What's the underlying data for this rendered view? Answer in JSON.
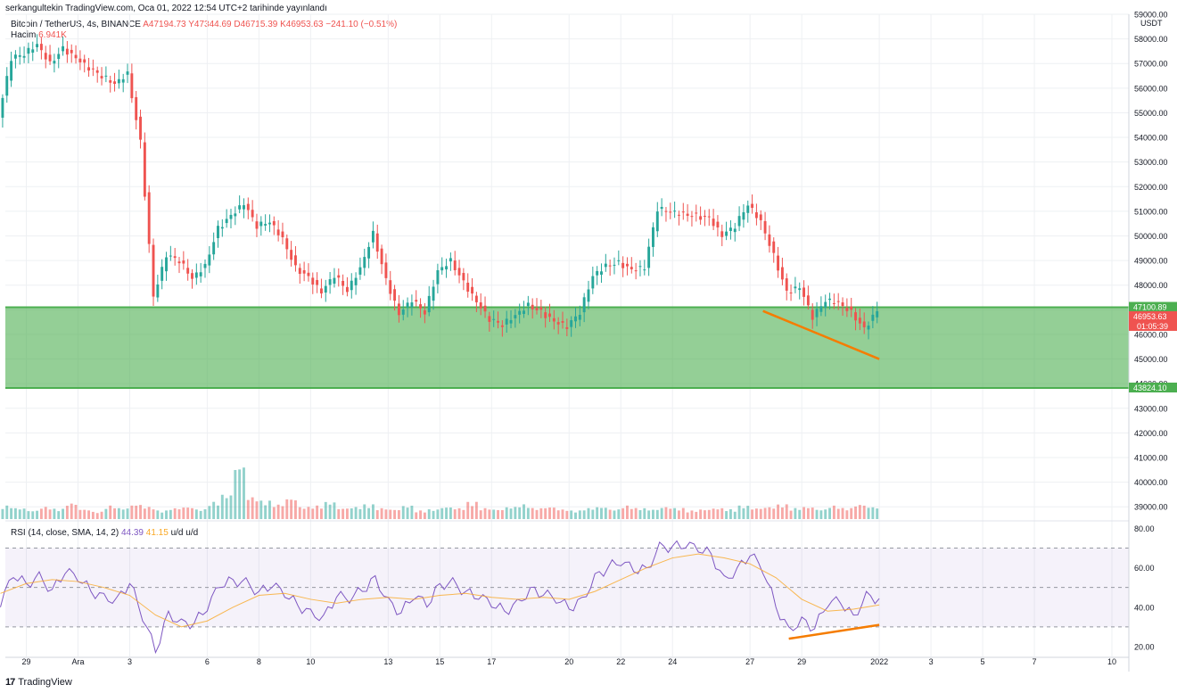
{
  "header": {
    "published": "serkangultekin TradingView.com, Oca 01, 2022 12:54 UTC+2 tarihinde yayınlandı",
    "symbol": "Bitcoin / TetherUS, 4s, BINANCE",
    "open": "A47194.73",
    "high": "Y47344.69",
    "low": "D46715.39",
    "close": "K46953.63",
    "change": "−241.10 (−0.51%)",
    "volume_label": "Hacim",
    "volume_value": "6.941K"
  },
  "rsi_legend": {
    "label": "RSI (14, close, SMA, 14, 2)",
    "rsi_value": "44.39",
    "sma_value": "41.15",
    "extra": "u/d u/d"
  },
  "footer": {
    "logo": "17",
    "brand": "TradingView"
  },
  "colors": {
    "up": "#26a69a",
    "down": "#ef5350",
    "zone": "#4caf50",
    "trend": "#f57c00",
    "rsi": "#7e57c2",
    "sma": "#f9a825"
  },
  "chart_data": [
    {
      "type": "candlestick",
      "title": "",
      "xlabel": "",
      "ylabel": "",
      "currency": "USDT",
      "ylim": [
        38500,
        59000
      ],
      "y_ticks": [
        39000,
        40000,
        41000,
        42000,
        43000,
        44000,
        45000,
        46000,
        47000,
        48000,
        49000,
        50000,
        51000,
        52000,
        53000,
        54000,
        55000,
        56000,
        57000,
        58000,
        59000
      ],
      "y_tick_labels": [
        "39000.00",
        "40000.00",
        "41000.00",
        "42000.00",
        "43000.00",
        "44000.00",
        "45000.00",
        "46000.00",
        "47000.00",
        "48000.00",
        "49000.00",
        "50000.00",
        "51000.00",
        "52000.00",
        "53000.00",
        "54000.00",
        "55000.00",
        "56000.00",
        "57000.00",
        "58000.00",
        "59000.00"
      ],
      "x_tick_labels": [
        "29",
        "Ara",
        "3",
        "6",
        "8",
        "10",
        "13",
        "15",
        "17",
        "20",
        "22",
        "24",
        "27",
        "29",
        "2022",
        "3",
        "5",
        "7",
        "10"
      ],
      "x_tick_dates": [
        "2021-11-29",
        "2021-12-01",
        "2021-12-03",
        "2021-12-06",
        "2021-12-08",
        "2021-12-10",
        "2021-12-13",
        "2021-12-15",
        "2021-12-17",
        "2021-12-20",
        "2021-12-22",
        "2021-12-24",
        "2021-12-27",
        "2021-12-29",
        "2022-01-01",
        "2022-01-03",
        "2022-01-05",
        "2022-01-07",
        "2022-01-10"
      ],
      "close_series": [
        [
          "2021-11-28",
          54800
        ],
        [
          "2021-11-28T12:00",
          57200
        ],
        [
          "2021-11-29",
          57400
        ],
        [
          "2021-11-29T12:00",
          57800
        ],
        [
          "2021-11-30",
          57000
        ],
        [
          "2021-11-30T12:00",
          57600
        ],
        [
          "2021-12-01",
          57200
        ],
        [
          "2021-12-01T12:00",
          56800
        ],
        [
          "2021-12-02",
          56500
        ],
        [
          "2021-12-02T12:00",
          56200
        ],
        [
          "2021-12-03",
          56600
        ],
        [
          "2021-12-03T12:00",
          53800
        ],
        [
          "2021-12-04",
          47500
        ],
        [
          "2021-12-04T12:00",
          49200
        ],
        [
          "2021-12-05",
          49000
        ],
        [
          "2021-12-05T12:00",
          48300
        ],
        [
          "2021-12-06",
          48800
        ],
        [
          "2021-12-06T12:00",
          50300
        ],
        [
          "2021-12-07",
          50800
        ],
        [
          "2021-12-07T12:00",
          51300
        ],
        [
          "2021-12-08",
          50400
        ],
        [
          "2021-12-08T12:00",
          50600
        ],
        [
          "2021-12-09",
          49900
        ],
        [
          "2021-12-09T12:00",
          48700
        ],
        [
          "2021-12-10",
          48300
        ],
        [
          "2021-12-10T12:00",
          47700
        ],
        [
          "2021-12-11",
          48400
        ],
        [
          "2021-12-11T12:00",
          47800
        ],
        [
          "2021-12-12",
          48700
        ],
        [
          "2021-12-12T12:00",
          50100
        ],
        [
          "2021-12-13",
          48200
        ],
        [
          "2021-12-13T12:00",
          46800
        ],
        [
          "2021-12-14",
          47400
        ],
        [
          "2021-12-14T12:00",
          46900
        ],
        [
          "2021-12-15",
          48600
        ],
        [
          "2021-12-15T12:00",
          49000
        ],
        [
          "2021-12-16",
          48100
        ],
        [
          "2021-12-16T12:00",
          47300
        ],
        [
          "2021-12-17",
          46600
        ],
        [
          "2021-12-17T12:00",
          46400
        ],
        [
          "2021-12-18",
          46800
        ],
        [
          "2021-12-18T12:00",
          47200
        ],
        [
          "2021-12-19",
          46900
        ],
        [
          "2021-12-19T12:00",
          46500
        ],
        [
          "2021-12-20",
          46300
        ],
        [
          "2021-12-20T12:00",
          46900
        ],
        [
          "2021-12-21",
          48400
        ],
        [
          "2021-12-21T12:00",
          48800
        ],
        [
          "2021-12-22",
          48900
        ],
        [
          "2021-12-22T12:00",
          48600
        ],
        [
          "2021-12-23",
          48700
        ],
        [
          "2021-12-23T12:00",
          51100
        ],
        [
          "2021-12-24",
          51000
        ],
        [
          "2021-12-24T12:00",
          50900
        ],
        [
          "2021-12-25",
          50800
        ],
        [
          "2021-12-25T12:00",
          50700
        ],
        [
          "2021-12-26",
          50000
        ],
        [
          "2021-12-26T12:00",
          50400
        ],
        [
          "2021-12-27",
          51300
        ],
        [
          "2021-12-27T12:00",
          50600
        ],
        [
          "2021-12-28",
          49200
        ],
        [
          "2021-12-28T12:00",
          47700
        ],
        [
          "2021-12-29",
          47900
        ],
        [
          "2021-12-29T12:00",
          46700
        ],
        [
          "2021-12-30",
          47400
        ],
        [
          "2021-12-30T12:00",
          47300
        ],
        [
          "2021-12-31",
          46900
        ],
        [
          "2021-12-31T12:00",
          46200
        ],
        [
          "2022-01-01",
          46950
        ]
      ],
      "reference_lines": [
        {
          "value": 47100.89,
          "label": "47100.89"
        },
        {
          "value": 43824.1,
          "label": "43824.10"
        }
      ],
      "current_price": {
        "value": 46953.63,
        "label": "46953.63",
        "countdown": "01:05:39"
      },
      "support_zone": [
        43824.1,
        47100.89
      ],
      "trendline": {
        "from": [
          "2021-12-27T12:00",
          46950
        ],
        "to": [
          "2022-01-01",
          45000
        ]
      }
    },
    {
      "type": "bar",
      "title": "",
      "series_name": "Hacim",
      "volume_pattern": [
        0.55,
        0.45,
        0.35,
        0.5,
        0.42,
        0.65,
        0.4,
        0.3,
        0.55,
        0.45,
        0.6,
        0.5,
        0.35,
        0.45,
        0.5,
        0.4,
        0.7,
        1.0,
        2.2,
        0.9,
        0.75,
        0.6,
        0.85,
        0.5,
        0.55,
        0.7,
        0.45,
        0.5,
        0.6,
        0.45,
        0.4,
        0.55,
        0.35,
        0.4,
        0.5,
        0.45,
        0.7,
        0.45,
        0.4,
        0.5,
        0.6,
        0.45,
        0.5,
        0.4,
        0.35,
        0.45,
        0.5,
        0.4,
        0.55,
        0.45,
        0.4,
        0.5,
        0.45,
        0.35,
        0.4,
        0.45,
        0.4,
        0.55,
        0.45,
        0.5,
        0.6,
        0.45,
        0.5,
        0.4,
        0.55,
        0.45,
        0.6,
        0.5,
        0.35
      ]
    },
    {
      "type": "line",
      "title": "",
      "ylim": [
        15,
        82
      ],
      "y_ticks": [
        20,
        40,
        60,
        80
      ],
      "y_tick_labels": [
        "20.00",
        "40.00",
        "60.00",
        "80.00"
      ],
      "levels": [
        70,
        50,
        30
      ],
      "rsi_series": [
        [
          "2021-11-28",
          40
        ],
        [
          "2021-11-28T12:00",
          55
        ],
        [
          "2021-11-29",
          52
        ],
        [
          "2021-11-29T12:00",
          58
        ],
        [
          "2021-11-30",
          49
        ],
        [
          "2021-11-30T12:00",
          57
        ],
        [
          "2021-12-01",
          53
        ],
        [
          "2021-12-01T12:00",
          48
        ],
        [
          "2021-12-02",
          47
        ],
        [
          "2021-12-02T12:00",
          45
        ],
        [
          "2021-12-03",
          52
        ],
        [
          "2021-12-03T12:00",
          33
        ],
        [
          "2021-12-04",
          17
        ],
        [
          "2021-12-04T12:00",
          38
        ],
        [
          "2021-12-05",
          34
        ],
        [
          "2021-12-05T12:00",
          32
        ],
        [
          "2021-12-06",
          38
        ],
        [
          "2021-12-06T12:00",
          50
        ],
        [
          "2021-12-07",
          54
        ],
        [
          "2021-12-07T12:00",
          55
        ],
        [
          "2021-12-08",
          48
        ],
        [
          "2021-12-08T12:00",
          50
        ],
        [
          "2021-12-09",
          45
        ],
        [
          "2021-12-09T12:00",
          41
        ],
        [
          "2021-12-10",
          39
        ],
        [
          "2021-12-10T12:00",
          36
        ],
        [
          "2021-12-11",
          45
        ],
        [
          "2021-12-11T12:00",
          42
        ],
        [
          "2021-12-12",
          48
        ],
        [
          "2021-12-12T12:00",
          56
        ],
        [
          "2021-12-13",
          45
        ],
        [
          "2021-12-13T12:00",
          37
        ],
        [
          "2021-12-14",
          44
        ],
        [
          "2021-12-14T12:00",
          40
        ],
        [
          "2021-12-15",
          52
        ],
        [
          "2021-12-15T12:00",
          55
        ],
        [
          "2021-12-16",
          48
        ],
        [
          "2021-12-16T12:00",
          44
        ],
        [
          "2021-12-17",
          40
        ],
        [
          "2021-12-17T12:00",
          38
        ],
        [
          "2021-12-18",
          44
        ],
        [
          "2021-12-18T12:00",
          50
        ],
        [
          "2021-12-19",
          46
        ],
        [
          "2021-12-19T12:00",
          42
        ],
        [
          "2021-12-20",
          39
        ],
        [
          "2021-12-20T12:00",
          45
        ],
        [
          "2021-12-21",
          57
        ],
        [
          "2021-12-21T12:00",
          60
        ],
        [
          "2021-12-22",
          61
        ],
        [
          "2021-12-22T12:00",
          58
        ],
        [
          "2021-12-23",
          60
        ],
        [
          "2021-12-23T12:00",
          73
        ],
        [
          "2021-12-24",
          71
        ],
        [
          "2021-12-24T12:00",
          70
        ],
        [
          "2021-12-25",
          68
        ],
        [
          "2021-12-25T12:00",
          67
        ],
        [
          "2021-12-26",
          56
        ],
        [
          "2021-12-26T12:00",
          60
        ],
        [
          "2021-12-27",
          66
        ],
        [
          "2021-12-27T12:00",
          57
        ],
        [
          "2021-12-28",
          40
        ],
        [
          "2021-12-28T12:00",
          30
        ],
        [
          "2021-12-29",
          35
        ],
        [
          "2021-12-29T12:00",
          29
        ],
        [
          "2021-12-30",
          40
        ],
        [
          "2021-12-30T12:00",
          42
        ],
        [
          "2021-12-31",
          36
        ],
        [
          "2021-12-31T12:00",
          48
        ],
        [
          "2022-01-01",
          44.39
        ]
      ],
      "sma_series": [
        [
          "2021-11-28",
          47
        ],
        [
          "2021-11-29",
          52
        ],
        [
          "2021-11-30",
          54
        ],
        [
          "2021-12-01",
          53
        ],
        [
          "2021-12-02",
          50
        ],
        [
          "2021-12-03",
          46
        ],
        [
          "2021-12-04",
          36
        ],
        [
          "2021-12-05",
          30
        ],
        [
          "2021-12-06",
          33
        ],
        [
          "2021-12-07",
          40
        ],
        [
          "2021-12-08",
          46
        ],
        [
          "2021-12-09",
          47
        ],
        [
          "2021-12-10",
          44
        ],
        [
          "2021-12-11",
          42
        ],
        [
          "2021-12-12",
          44
        ],
        [
          "2021-12-13",
          45
        ],
        [
          "2021-12-14",
          44
        ],
        [
          "2021-12-15",
          46
        ],
        [
          "2021-12-16",
          47
        ],
        [
          "2021-12-17",
          45
        ],
        [
          "2021-12-18",
          44
        ],
        [
          "2021-12-19",
          45
        ],
        [
          "2021-12-20",
          44
        ],
        [
          "2021-12-21",
          48
        ],
        [
          "2021-12-22",
          54
        ],
        [
          "2021-12-23",
          60
        ],
        [
          "2021-12-24",
          65
        ],
        [
          "2021-12-25",
          67
        ],
        [
          "2021-12-26",
          65
        ],
        [
          "2021-12-27",
          62
        ],
        [
          "2021-12-28",
          55
        ],
        [
          "2021-12-29",
          44
        ],
        [
          "2021-12-30",
          38
        ],
        [
          "2021-12-31",
          39
        ],
        [
          "2022-01-01",
          41.15
        ]
      ],
      "trendline": {
        "from": [
          "2021-12-28T12:00",
          24
        ],
        "to": [
          "2022-01-01",
          31
        ]
      }
    }
  ]
}
